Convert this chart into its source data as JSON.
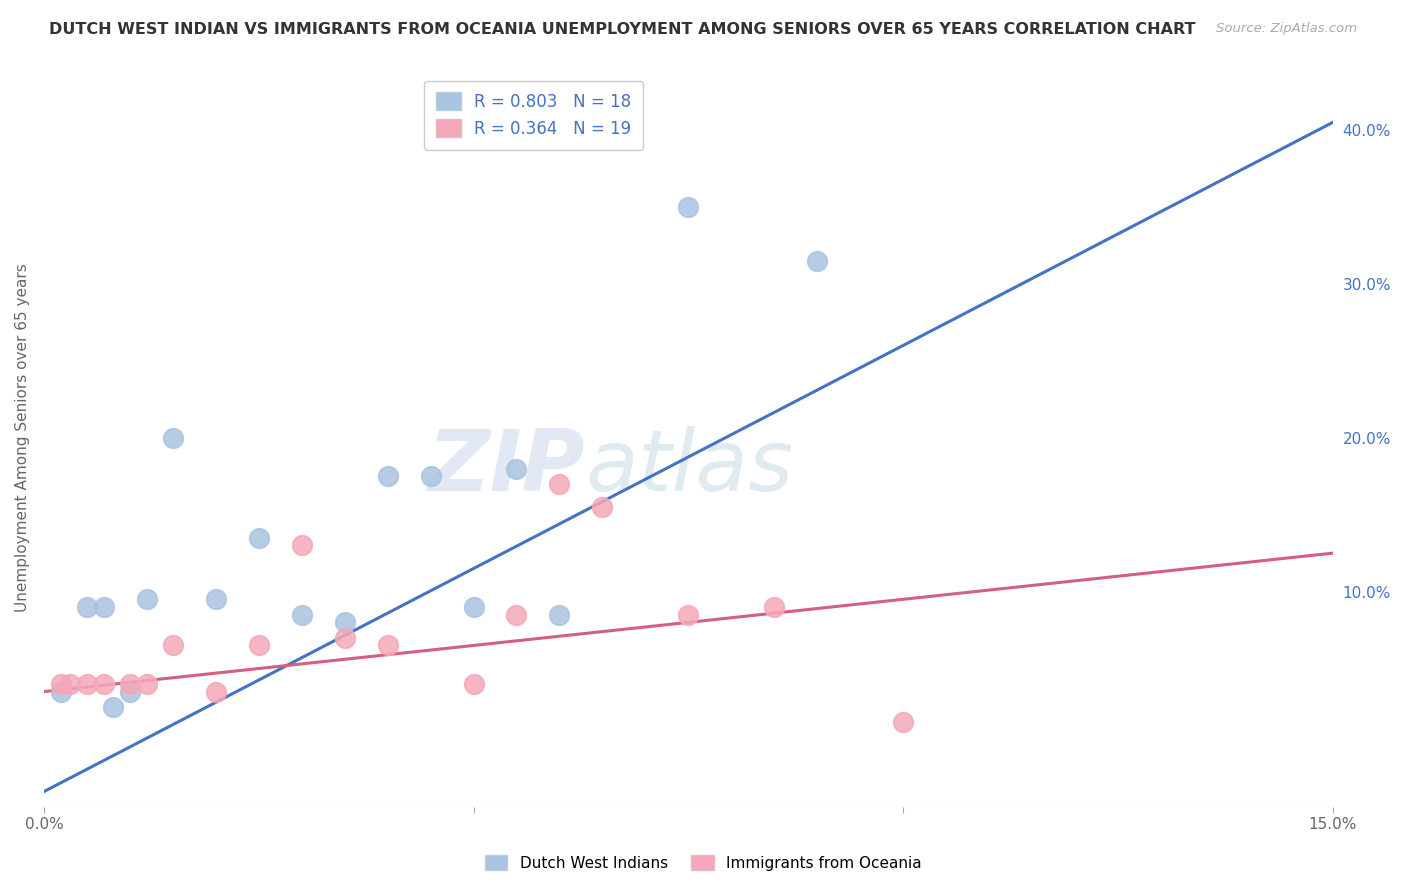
{
  "title": "DUTCH WEST INDIAN VS IMMIGRANTS FROM OCEANIA UNEMPLOYMENT AMONG SENIORS OVER 65 YEARS CORRELATION CHART",
  "source": "Source: ZipAtlas.com",
  "ylabel": "Unemployment Among Seniors over 65 years",
  "xlim": [
    0.0,
    0.15
  ],
  "ylim": [
    -0.04,
    0.44
  ],
  "yticks_right": [
    0.1,
    0.2,
    0.3,
    0.4
  ],
  "ytick_right_labels": [
    "10.0%",
    "20.0%",
    "30.0%",
    "40.0%"
  ],
  "blue_scatter_x": [
    0.002,
    0.005,
    0.007,
    0.008,
    0.01,
    0.012,
    0.015,
    0.02,
    0.025,
    0.03,
    0.035,
    0.04,
    0.045,
    0.05,
    0.055,
    0.06,
    0.075,
    0.09
  ],
  "blue_scatter_y": [
    0.035,
    0.09,
    0.09,
    0.025,
    0.035,
    0.095,
    0.2,
    0.095,
    0.135,
    0.085,
    0.08,
    0.175,
    0.175,
    0.09,
    0.18,
    0.085,
    0.35,
    0.315
  ],
  "pink_scatter_x": [
    0.002,
    0.003,
    0.005,
    0.007,
    0.01,
    0.012,
    0.015,
    0.02,
    0.025,
    0.03,
    0.035,
    0.04,
    0.05,
    0.055,
    0.06,
    0.065,
    0.075,
    0.085,
    0.1
  ],
  "pink_scatter_y": [
    0.04,
    0.04,
    0.04,
    0.04,
    0.04,
    0.04,
    0.065,
    0.035,
    0.065,
    0.13,
    0.07,
    0.065,
    0.04,
    0.085,
    0.17,
    0.155,
    0.085,
    0.09,
    0.015
  ],
  "blue_line_x": [
    0.0,
    0.15
  ],
  "blue_line_y": [
    -0.03,
    0.405
  ],
  "pink_line_x": [
    0.0,
    0.15
  ],
  "pink_line_y": [
    0.035,
    0.125
  ],
  "blue_color": "#a8c4e0",
  "pink_color": "#f4a8b8",
  "blue_line_color": "#4472c4",
  "pink_line_color": "#d46080",
  "blue_R": 0.803,
  "blue_N": 18,
  "pink_R": 0.364,
  "pink_N": 19,
  "legend_label_blue": "Dutch West Indians",
  "legend_label_pink": "Immigrants from Oceania",
  "watermark_zip": "ZIP",
  "watermark_atlas": "atlas",
  "background_color": "#ffffff",
  "grid_color": "#d0d8e8"
}
